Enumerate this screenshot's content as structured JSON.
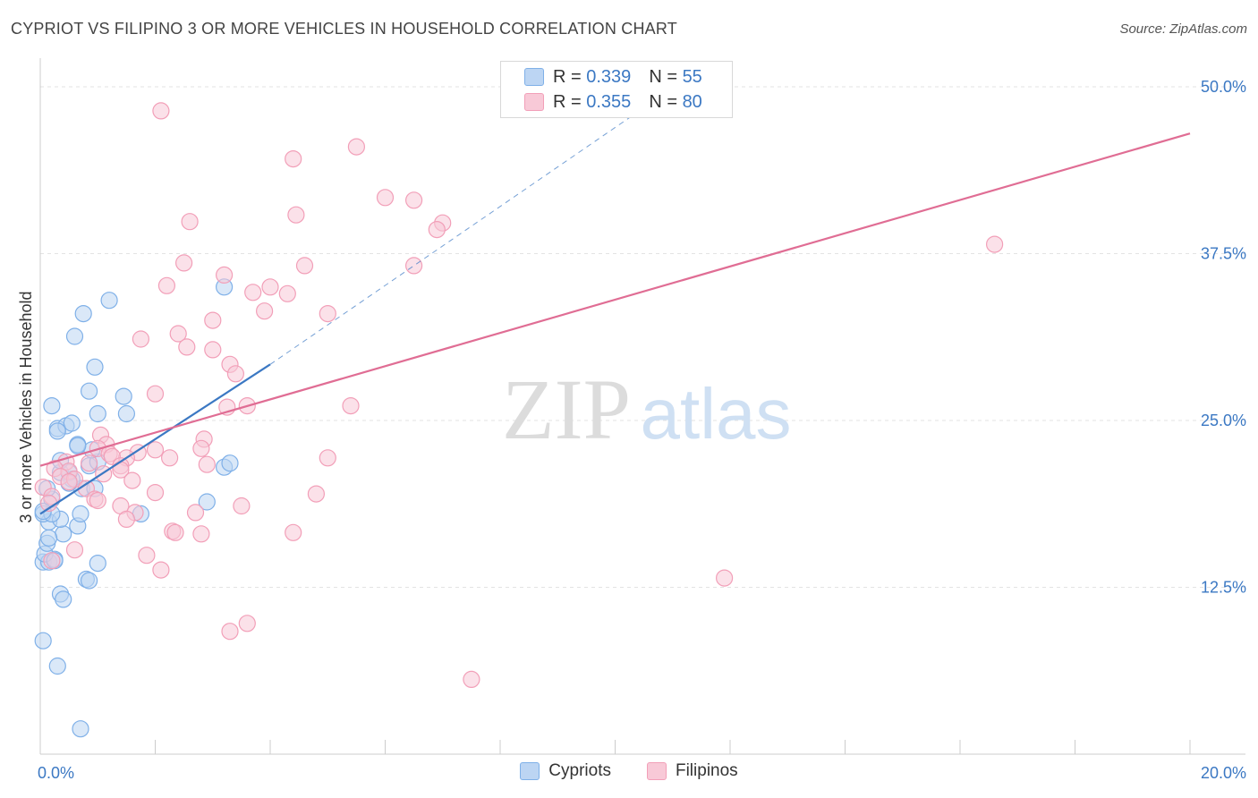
{
  "title": "CYPRIOT VS FILIPINO 3 OR MORE VEHICLES IN HOUSEHOLD CORRELATION CHART",
  "source": "Source: ZipAtlas.com",
  "watermark": {
    "zip": "ZIP",
    "atlas": "atlas"
  },
  "legend": {
    "r_label": "R =",
    "n_label": "N =",
    "series": [
      {
        "name": "Cypriots",
        "r": "0.339",
        "n": "55",
        "color": "#7fb0e8",
        "fill": "#bcd5f3",
        "line": "#3b78c3"
      },
      {
        "name": "Filipinos",
        "r": "0.355",
        "n": "80",
        "color": "#f29fb8",
        "fill": "#f8c9d7",
        "line": "#e06d94"
      }
    ]
  },
  "chart_data": {
    "type": "scatter",
    "title": "CYPRIOT VS FILIPINO 3 OR MORE VEHICLES IN HOUSEHOLD CORRELATION CHART",
    "xlabel": "",
    "ylabel": "3 or more Vehicles in Household",
    "xlim": [
      0,
      20
    ],
    "ylim": [
      0,
      52
    ],
    "x_tick_labels": [
      "0.0%",
      "20.0%"
    ],
    "y_ticks": [
      12.5,
      25.0,
      37.5,
      50.0
    ],
    "y_tick_labels": [
      "12.5%",
      "25.0%",
      "37.5%",
      "50.0%"
    ],
    "series": [
      {
        "name": "Cypriots",
        "points": [
          [
            0.05,
            8.5
          ],
          [
            0.3,
            6.6
          ],
          [
            0.7,
            1.9
          ],
          [
            0.35,
            12.0
          ],
          [
            0.4,
            11.6
          ],
          [
            0.8,
            13.1
          ],
          [
            0.85,
            13.0
          ],
          [
            0.05,
            14.4
          ],
          [
            0.15,
            14.4
          ],
          [
            0.25,
            14.6
          ],
          [
            0.08,
            15.0
          ],
          [
            0.12,
            15.8
          ],
          [
            0.4,
            16.5
          ],
          [
            0.65,
            17.1
          ],
          [
            0.15,
            17.4
          ],
          [
            0.35,
            17.6
          ],
          [
            0.05,
            18.0
          ],
          [
            0.2,
            18.0
          ],
          [
            0.7,
            18.0
          ],
          [
            0.2,
            19.1
          ],
          [
            0.12,
            19.9
          ],
          [
            0.72,
            19.9
          ],
          [
            0.95,
            19.9
          ],
          [
            0.55,
            20.6
          ],
          [
            0.35,
            21.1
          ],
          [
            0.5,
            21.1
          ],
          [
            0.85,
            21.6
          ],
          [
            0.35,
            22.0
          ],
          [
            1.0,
            21.9
          ],
          [
            0.9,
            22.8
          ],
          [
            0.65,
            23.2
          ],
          [
            0.3,
            24.4
          ],
          [
            0.45,
            24.6
          ],
          [
            0.55,
            24.8
          ],
          [
            1.0,
            25.5
          ],
          [
            0.2,
            26.1
          ],
          [
            0.85,
            27.2
          ],
          [
            0.95,
            29.0
          ],
          [
            0.6,
            31.3
          ],
          [
            0.75,
            33.0
          ],
          [
            1.2,
            34.0
          ],
          [
            1.45,
            26.8
          ],
          [
            1.5,
            25.5
          ],
          [
            1.75,
            18.0
          ],
          [
            3.2,
            21.5
          ],
          [
            3.3,
            21.8
          ],
          [
            2.9,
            18.9
          ],
          [
            3.2,
            35.0
          ],
          [
            1.0,
            14.3
          ],
          [
            0.25,
            14.5
          ],
          [
            0.05,
            18.2
          ],
          [
            0.15,
            16.2
          ],
          [
            0.3,
            24.2
          ],
          [
            0.65,
            23.1
          ],
          [
            0.5,
            20.3
          ]
        ]
      },
      {
        "name": "Filipinos",
        "points": [
          [
            2.1,
            48.2
          ],
          [
            5.5,
            45.5
          ],
          [
            4.4,
            44.6
          ],
          [
            6.0,
            41.7
          ],
          [
            6.5,
            41.5
          ],
          [
            4.45,
            40.4
          ],
          [
            7.0,
            39.8
          ],
          [
            2.6,
            39.9
          ],
          [
            6.9,
            39.3
          ],
          [
            2.5,
            36.8
          ],
          [
            4.6,
            36.6
          ],
          [
            6.5,
            36.6
          ],
          [
            3.2,
            35.9
          ],
          [
            2.2,
            35.1
          ],
          [
            4.0,
            35.0
          ],
          [
            3.7,
            34.6
          ],
          [
            4.3,
            34.5
          ],
          [
            3.9,
            33.2
          ],
          [
            5.0,
            33.0
          ],
          [
            3.0,
            32.5
          ],
          [
            2.4,
            31.5
          ],
          [
            1.75,
            31.1
          ],
          [
            2.55,
            30.5
          ],
          [
            3.0,
            30.3
          ],
          [
            3.3,
            29.2
          ],
          [
            3.4,
            28.5
          ],
          [
            2.0,
            27.0
          ],
          [
            3.6,
            26.1
          ],
          [
            3.25,
            26.0
          ],
          [
            5.4,
            26.1
          ],
          [
            1.05,
            23.9
          ],
          [
            2.85,
            23.6
          ],
          [
            1.15,
            23.2
          ],
          [
            2.8,
            22.9
          ],
          [
            1.0,
            22.9
          ],
          [
            2.0,
            22.8
          ],
          [
            1.7,
            22.6
          ],
          [
            1.2,
            22.5
          ],
          [
            5.0,
            22.2
          ],
          [
            1.5,
            22.2
          ],
          [
            1.25,
            22.3
          ],
          [
            2.25,
            22.2
          ],
          [
            0.45,
            21.9
          ],
          [
            0.85,
            21.8
          ],
          [
            1.4,
            21.6
          ],
          [
            0.25,
            21.4
          ],
          [
            2.9,
            21.7
          ],
          [
            1.4,
            21.3
          ],
          [
            0.5,
            21.2
          ],
          [
            1.1,
            21.0
          ],
          [
            0.35,
            20.8
          ],
          [
            0.6,
            20.6
          ],
          [
            1.6,
            20.5
          ],
          [
            0.5,
            20.4
          ],
          [
            0.8,
            19.9
          ],
          [
            0.05,
            20.0
          ],
          [
            2.0,
            19.6
          ],
          [
            4.8,
            19.5
          ],
          [
            0.2,
            19.3
          ],
          [
            0.95,
            19.1
          ],
          [
            1.0,
            19.0
          ],
          [
            0.15,
            18.8
          ],
          [
            3.5,
            18.6
          ],
          [
            1.4,
            18.6
          ],
          [
            1.65,
            18.1
          ],
          [
            2.7,
            18.1
          ],
          [
            1.5,
            17.6
          ],
          [
            2.3,
            16.7
          ],
          [
            2.35,
            16.6
          ],
          [
            2.8,
            16.5
          ],
          [
            4.4,
            16.6
          ],
          [
            0.6,
            15.3
          ],
          [
            1.85,
            14.9
          ],
          [
            0.2,
            14.5
          ],
          [
            2.1,
            13.8
          ],
          [
            11.9,
            13.2
          ],
          [
            3.6,
            9.8
          ],
          [
            3.3,
            9.2
          ],
          [
            7.5,
            5.6
          ],
          [
            16.6,
            38.2
          ]
        ]
      }
    ],
    "trend_lines": [
      {
        "series": "Cypriots",
        "solid": [
          [
            0,
            18.0
          ],
          [
            4.0,
            29.2
          ]
        ],
        "dashed": [
          [
            4.0,
            29.2
          ],
          [
            11.2,
            50.5
          ]
        ]
      },
      {
        "series": "Filipinos",
        "solid": [
          [
            0,
            21.6
          ],
          [
            20,
            46.5
          ]
        ]
      }
    ]
  }
}
